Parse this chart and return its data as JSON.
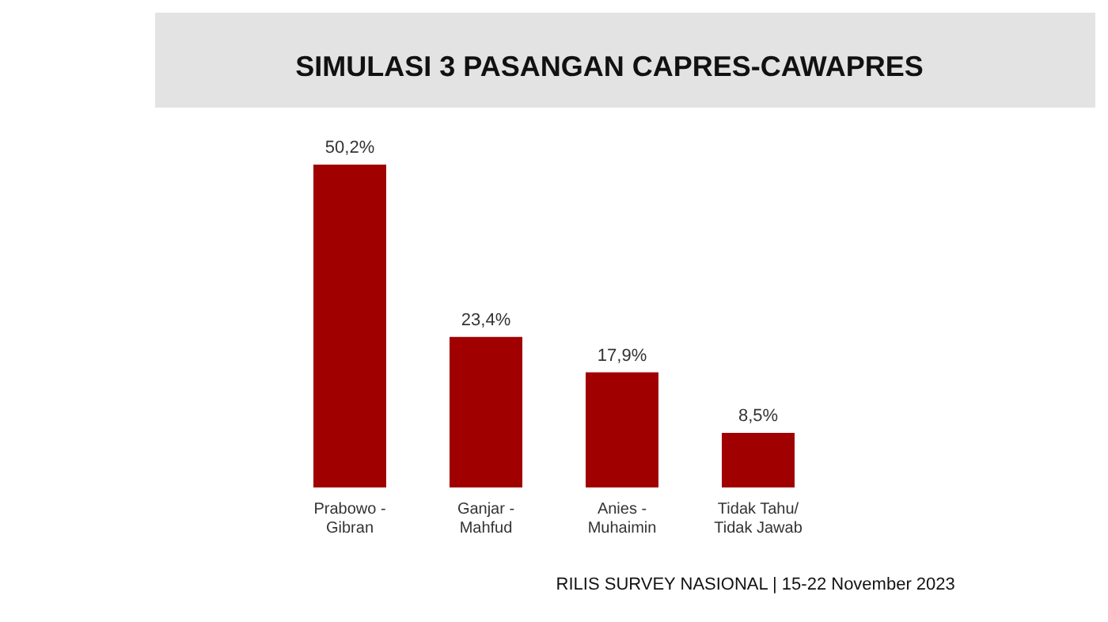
{
  "chart_data": {
    "type": "bar",
    "title": "SIMULASI 3 PASANGAN CAPRES-CAWAPRES",
    "categories": [
      "Prabowo -\nGibran",
      "Ganjar -\nMahfud",
      "Anies -\nMuhaimin",
      "Tidak Tahu/\nTidak Jawab"
    ],
    "values": [
      50.2,
      23.4,
      17.9,
      8.5
    ],
    "value_labels": [
      "50,2%",
      "23,4%",
      "17,9%",
      "8,5%"
    ],
    "color": "#a00000",
    "annotations": [
      "RILIS SURVEY NASIONAL | 15-22 November 2023"
    ]
  }
}
